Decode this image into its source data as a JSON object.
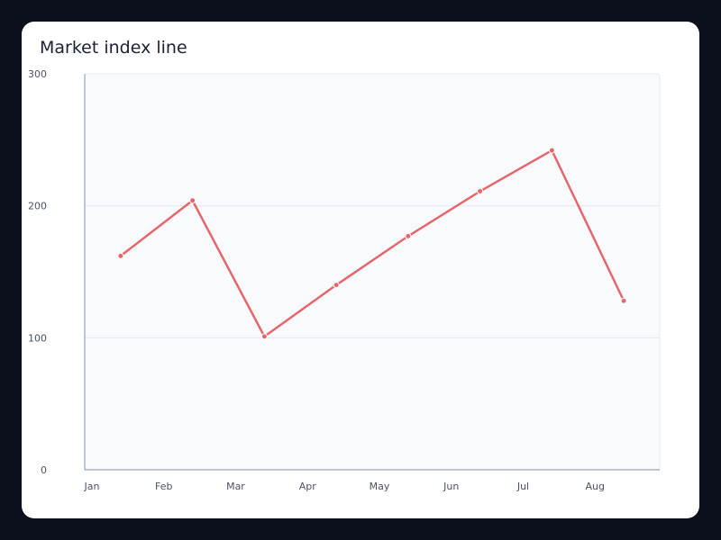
{
  "chart_data": {
    "type": "line",
    "title": "Market index line",
    "xlabel": "",
    "ylabel": "",
    "categories": [
      "Jan",
      "Feb",
      "Mar",
      "Apr",
      "May",
      "Jun",
      "Jul",
      "Aug"
    ],
    "series": [
      {
        "values": [
          162,
          204,
          101,
          140,
          177,
          211,
          242,
          128
        ],
        "color": "#e5676b"
      }
    ],
    "ylim": [
      0,
      300
    ],
    "yticks": [
      0,
      100,
      200,
      300
    ],
    "grid": true
  }
}
